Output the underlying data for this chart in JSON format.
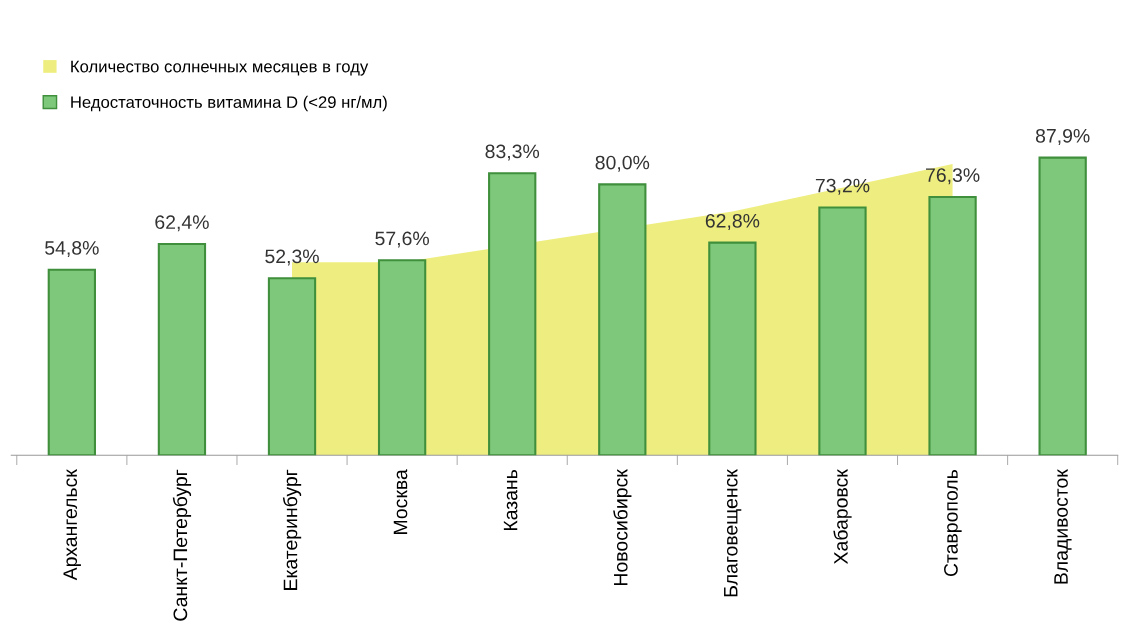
{
  "chart_data": {
    "type": "bar",
    "categories": [
      "Архангельск",
      "Санкт-Петербург",
      "Екатеринбург",
      "Москва",
      "Казань",
      "Новосибирск",
      "Благовещенск",
      "Хабаровск",
      "Ставрополь",
      "Владивосток"
    ],
    "series": [
      {
        "name": "Количество солнечных месяцев в году",
        "type": "area",
        "color": "#eeee80",
        "values": [
          null,
          null,
          57,
          57,
          null,
          null,
          72,
          null,
          86,
          null
        ]
      },
      {
        "name": "Недостаточность витамина D (<29 нг/мл)",
        "color": "#7dc87a",
        "values": [
          54.8,
          62.4,
          52.3,
          57.6,
          83.3,
          80.0,
          62.8,
          73.2,
          76.3,
          87.9
        ],
        "value_labels": [
          "54,8%",
          "62,4%",
          "52,3%",
          "57,6%",
          "83,3%",
          "80,0%",
          "62,8%",
          "73,2%",
          "76,3%",
          "87,9%"
        ]
      }
    ],
    "tick_labels": "x",
    "legend": "top left",
    "grid": false
  }
}
